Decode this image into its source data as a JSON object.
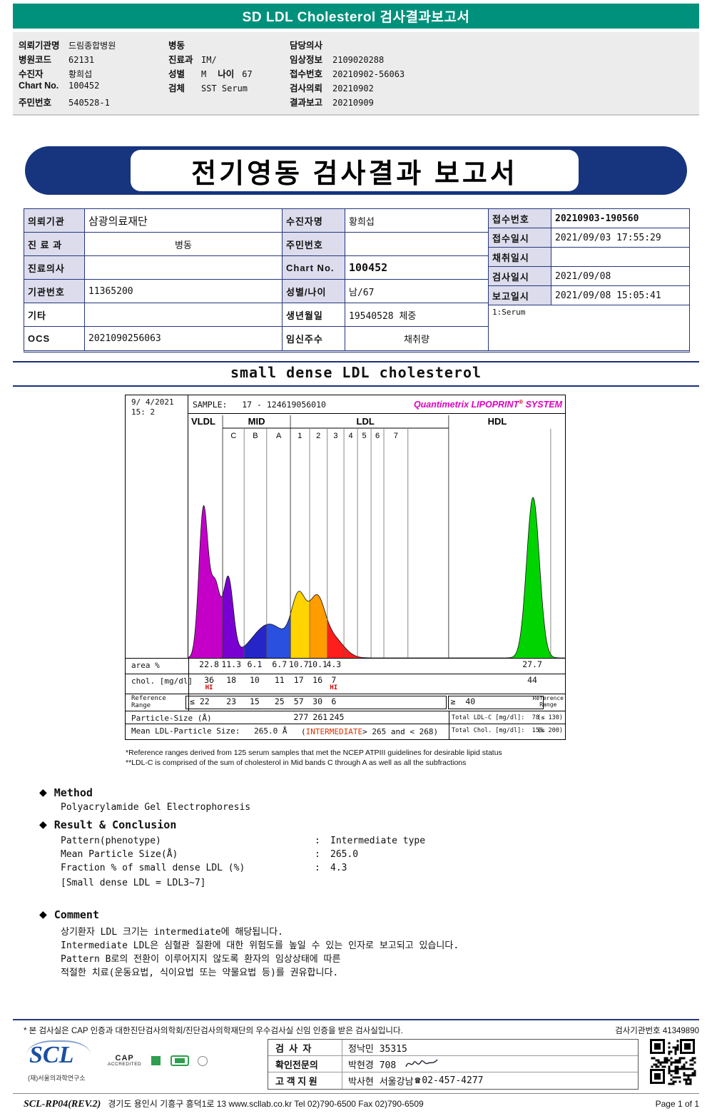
{
  "colors": {
    "teal": "#00917c",
    "navy": "#17357e",
    "magenta": "#e000c0",
    "alert_red": "#cc0000"
  },
  "top_banner": {
    "title": "SD LDL Cholesterol 검사결과보고서"
  },
  "patient_header": {
    "col1": [
      {
        "label": "의뢰기관명",
        "value": "드림종합병원"
      },
      {
        "label": "병원코드",
        "value": "62131"
      },
      {
        "label": "수진자",
        "value": "황희섭"
      },
      {
        "label": "Chart No.",
        "value": "100452"
      },
      {
        "label": "주민번호",
        "value": "540528-1"
      }
    ],
    "col2": [
      {
        "label": "병동",
        "value": ""
      },
      {
        "label": "진료과",
        "value": "IM/"
      },
      {
        "label": "성별",
        "value": "M",
        "label2": "나이",
        "value2": "67"
      },
      {
        "label": "검체",
        "value": "SST Serum"
      }
    ],
    "col3": [
      {
        "label": "담당의사",
        "value": ""
      },
      {
        "label": "임상정보",
        "value": "2109020288"
      },
      {
        "label": "접수번호",
        "value": "20210902-56063"
      },
      {
        "label": "검사의뢰",
        "value": "20210902"
      },
      {
        "label": "결과보고",
        "value": "20210909"
      }
    ]
  },
  "report_banner": {
    "title": "전기영동 검사결과 보고서"
  },
  "info_table": {
    "l1": "의뢰기관",
    "v1": "삼광의료재단",
    "l2": "수진자명",
    "v2": "황희섭",
    "l3": "접수번호",
    "v3": "20210903-190560",
    "l4": "진 료 과",
    "v4": "병동",
    "l5": "주민번호",
    "v5": "",
    "l6": "접수일시",
    "v6": "2021/09/03 17:55:29",
    "l7": "진료의사",
    "v7": "",
    "l8": "Chart No.",
    "v8": "100452",
    "l9": "채취일시",
    "v9": "",
    "l10": "기관번호",
    "v10": "11365200",
    "l11": "성별/나이",
    "v11": "남/67",
    "l12": "검사일시",
    "v12": "2021/09/08",
    "l13": "보고일시",
    "v13": "2021/09/08 15:05:41",
    "l14": "기타",
    "v14": "",
    "l15": "생년월일",
    "v15": "19540528 체중",
    "serum": "1:Serum",
    "l16": "OCS",
    "v16": "2021090256063",
    "l17": "임신주수",
    "v17": "채취량"
  },
  "section_title": "small dense LDL cholesterol",
  "chart_data": {
    "type": "area",
    "title": "small dense LDL cholesterol",
    "date_line1": "9/ 4/2021",
    "date_line2": "15:  2",
    "sample_label": "SAMPLE:   17 - 124619056010",
    "system_left": "Quantimetrix LIPOPRINT",
    "system_right": "SYSTEM",
    "bands": [
      {
        "label": "VLDL",
        "x": 0.004,
        "align": "left"
      },
      {
        "label": "MID",
        "x": 0.181,
        "align": "middle"
      },
      {
        "label": "LDL",
        "x": 0.47,
        "align": "middle"
      },
      {
        "label": "HDL",
        "x": 0.82,
        "align": "middle"
      }
    ],
    "sub_labels": [
      {
        "label": "C",
        "x": 0.12
      },
      {
        "label": "B",
        "x": 0.178
      },
      {
        "label": "A",
        "x": 0.24
      },
      {
        "label": "1",
        "x": 0.296
      },
      {
        "label": "2",
        "x": 0.345
      },
      {
        "label": "3",
        "x": 0.391
      },
      {
        "label": "4",
        "x": 0.431
      },
      {
        "label": "5",
        "x": 0.467
      },
      {
        "label": "6",
        "x": 0.502
      },
      {
        "label": "7",
        "x": 0.551
      }
    ],
    "band_underlines": [
      [
        0.091,
        0.271
      ],
      [
        0.271,
        0.691
      ]
    ],
    "separators_main": [
      0.091,
      0.271,
      0.691
    ],
    "separators_sub": [
      0.148,
      0.208,
      0.322,
      0.369,
      0.413,
      0.449,
      0.485,
      0.519,
      0.583,
      0.962
    ],
    "curve_peaks": [
      {
        "x": 0.04,
        "h": 0.7,
        "w": 0.012
      },
      {
        "x": 0.071,
        "h": 0.34,
        "w": 0.013
      },
      {
        "x": 0.106,
        "h": 0.37,
        "w": 0.013
      },
      {
        "x": 0.215,
        "h": 0.16,
        "w": 0.045
      },
      {
        "x": 0.293,
        "h": 0.26,
        "w": 0.019
      },
      {
        "x": 0.341,
        "h": 0.26,
        "w": 0.021
      },
      {
        "x": 0.385,
        "h": 0.09,
        "w": 0.028
      },
      {
        "x": 0.915,
        "h": 0.76,
        "w": 0.017
      }
    ],
    "color_segments": [
      {
        "from": 0.0,
        "to": 0.091,
        "color": "#c400c8"
      },
      {
        "from": 0.091,
        "to": 0.148,
        "color": "#7a00d2"
      },
      {
        "from": 0.148,
        "to": 0.208,
        "color": "#2626c8"
      },
      {
        "from": 0.208,
        "to": 0.271,
        "color": "#2a50e0"
      },
      {
        "from": 0.271,
        "to": 0.322,
        "color": "#ffd400"
      },
      {
        "from": 0.322,
        "to": 0.369,
        "color": "#ff9c00"
      },
      {
        "from": 0.369,
        "to": 0.691,
        "color": "#ff1e1e"
      },
      {
        "from": 0.691,
        "to": 1.0,
        "color": "#00d400"
      }
    ],
    "fractions": [
      {
        "band": "VLDL",
        "area_pct": 22.8,
        "chol_mg_dl": 36,
        "ref": "≤ 22",
        "flag": "HI"
      },
      {
        "band": "MID C",
        "area_pct": 11.3,
        "chol_mg_dl": 18,
        "ref": "23"
      },
      {
        "band": "MID B",
        "area_pct": 6.1,
        "chol_mg_dl": 10,
        "ref": "15"
      },
      {
        "band": "MID A",
        "area_pct": 6.7,
        "chol_mg_dl": 11,
        "ref": "25"
      },
      {
        "band": "LDL1",
        "area_pct": 10.7,
        "chol_mg_dl": 17,
        "ref": "57"
      },
      {
        "band": "LDL2",
        "area_pct": 10.1,
        "chol_mg_dl": 16,
        "ref": "30"
      },
      {
        "band": "LDL3-7",
        "area_pct": 4.3,
        "chol_mg_dl": 7,
        "ref": "6",
        "flag": "HI"
      },
      {
        "band": "HDL",
        "area_pct": 27.7,
        "chol_mg_dl": 44,
        "ref": "≥ 40"
      }
    ],
    "particle_size": {
      "LDL1": 277,
      "LDL2": 261,
      "LDL3": 245
    },
    "mean_ldl_particle_size": 265.0,
    "total_ldl_c": 78,
    "total_ldl_c_ref": "≤ 130",
    "total_chol": 158,
    "total_chol_ref": "≤ 200",
    "table": {
      "area_label": "area %",
      "area_cells": [
        {
          "x": 0.055,
          "v": "22.8"
        },
        {
          "x": 0.114,
          "v": "11.3"
        },
        {
          "x": 0.176,
          "v": "6.1"
        },
        {
          "x": 0.242,
          "v": "6.7"
        },
        {
          "x": 0.293,
          "v": "10.7"
        },
        {
          "x": 0.343,
          "v": "10.1"
        },
        {
          "x": 0.386,
          "v": "4.3"
        },
        {
          "x": 0.913,
          "v": "27.7"
        }
      ],
      "chol_label": "chol. [mg/dl]",
      "chol_cells": [
        {
          "x": 0.055,
          "v": "36",
          "flag": "HI"
        },
        {
          "x": 0.114,
          "v": "18"
        },
        {
          "x": 0.176,
          "v": "10"
        },
        {
          "x": 0.242,
          "v": "11"
        },
        {
          "x": 0.293,
          "v": "17"
        },
        {
          "x": 0.343,
          "v": "16"
        },
        {
          "x": 0.386,
          "v": "7",
          "flag": "HI"
        },
        {
          "x": 0.913,
          "v": "44"
        }
      ],
      "ref_label1": "Reference",
      "ref_label2": "Range",
      "ref_cells": [
        {
          "x": 0.03,
          "v": "≤ 22"
        },
        {
          "x": 0.114,
          "v": "23"
        },
        {
          "x": 0.176,
          "v": "15"
        },
        {
          "x": 0.242,
          "v": "25"
        },
        {
          "x": 0.293,
          "v": "57"
        },
        {
          "x": 0.343,
          "v": "30"
        },
        {
          "x": 0.386,
          "v": "6"
        },
        {
          "x": 0.729,
          "v": "≥  40"
        }
      ],
      "ref_right1": "Reference",
      "ref_right2": "Range",
      "particle_label": "Particle-Size (Å)",
      "particle_cells": [
        {
          "x": 0.299,
          "v": "277"
        },
        {
          "x": 0.35,
          "v": "261"
        },
        {
          "x": 0.394,
          "v": "245"
        }
      ],
      "particle_total": "Total LDL-C [mg/dl]:  78",
      "particle_ref": "(≤ 130)",
      "mean_label": "Mean LDL-Particle Size:   265.0 Å",
      "mean_paren": "(",
      "mean_flag": "INTERMEDIATE",
      "mean_range": "> 265 and < 268)",
      "mean_total": "Total Chol. [mg/dl]:  158",
      "mean_ref": "(≤ 200)"
    }
  },
  "footnotes": [
    "*Reference ranges derived from 125 serum samples that met the NCEP ATPIII guidelines for desirable lipid status",
    "**LDL-C is comprised of the sum of cholesterol in Mid bands C through A as well as all the subfractions"
  ],
  "method": {
    "heading": "Method",
    "body": "Polyacrylamide Gel Electrophoresis",
    "result_heading": "Result & Conclusion",
    "results": [
      {
        "label": "Pattern(phenotype)",
        "value": "Intermediate type"
      },
      {
        "label": "Mean Particle Size(Å)",
        "value": "265.0"
      },
      {
        "label": "Fraction % of small dense LDL (%)",
        "value": "4.3"
      }
    ],
    "result_note": "[Small dense LDL = LDL3~7]",
    "comment_heading": "Comment",
    "comment_lines": [
      "상기환자 LDL 크기는 intermediate에 해당됩니다.",
      "Intermediate LDL은 심혈관 질환에 대한 위험도를 높일 수 있는 인자로 보고되고 있습니다.",
      "Pattern B로의 전환이 이루어지지 않도록 환자의 임상상태에 따른",
      "적절한 치료(운동요법, 식이요법 또는 약물요법 등)를 권유합니다."
    ]
  },
  "footer": {
    "accreditation_note": "* 본 검사실은 CAP 인증과 대한진단검사의학회/진단검사의학재단의 우수검사실 신임 인증을 받은 검사실입니다.",
    "lab_no_label": "검사기관번호",
    "lab_no": "41349890",
    "staff": [
      {
        "label": "검  사  자",
        "value": "정낙민 35315"
      },
      {
        "label": "확인전문의",
        "value": "박현경 708",
        "signed": true
      },
      {
        "label": "고 객 지 원",
        "value": "박사현 서울강남",
        "phone": "02-457-4277"
      }
    ],
    "logo_text": "SCL",
    "logo_sub": "(재)서울의과학연구소",
    "cap_label": "CAP",
    "cap_sub": "ACCREDITED",
    "doc_code": "SCL-RP04(REV.2)",
    "address": "경기도 용인시 기흥구 흥덕1로 13   www.scllab.co.kr   Tel 02)790-6500   Fax 02)790-6509",
    "page": "Page 1 of 1"
  }
}
